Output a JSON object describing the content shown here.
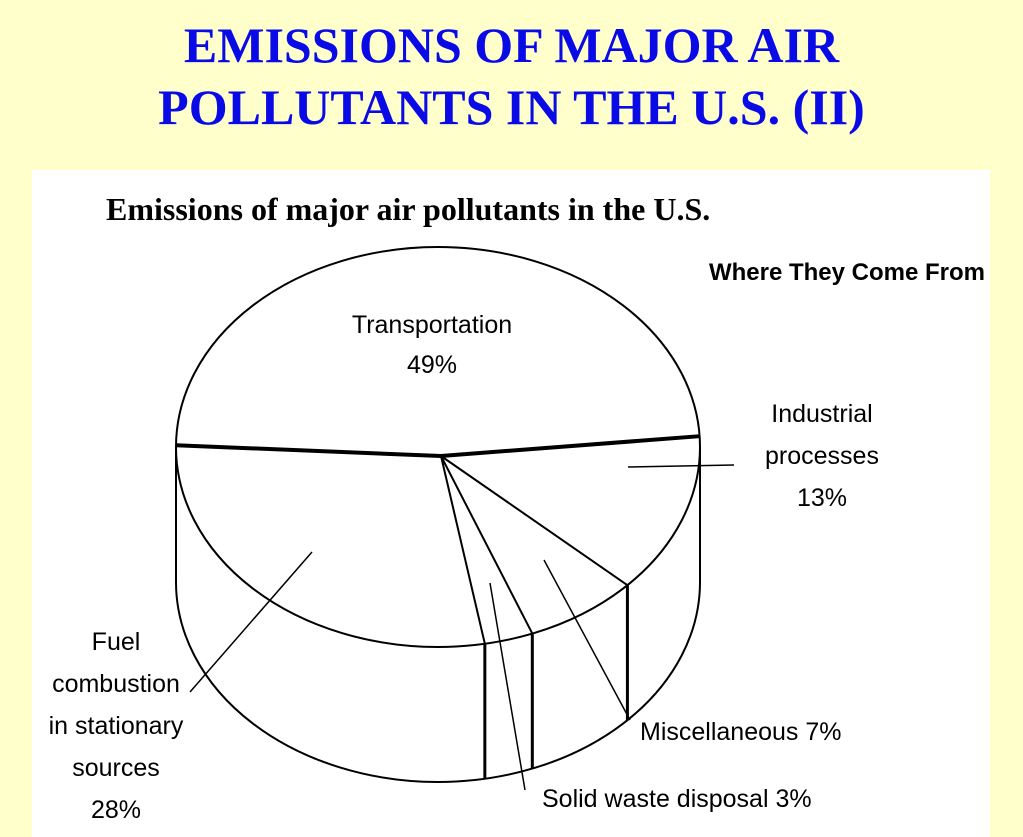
{
  "slide": {
    "title_line1": "EMISSIONS OF MAJOR AIR",
    "title_line2": "POLLUTANTS IN THE U.S. (II)",
    "background_color": "#ffffcc",
    "title_color": "#0a0ae6"
  },
  "chart_data": {
    "type": "pie",
    "title": "Emissions of major air pollutants in the U.S.",
    "subtitle": "Where They Come From",
    "slices": [
      {
        "label_lines": [
          "Transportation",
          "49%"
        ],
        "name": "Transportation",
        "value": 49
      },
      {
        "label_lines": [
          "Industrial",
          "processes",
          "13%"
        ],
        "name": "Industrial processes",
        "value": 13
      },
      {
        "label_lines": [
          "Miscellaneous   7%"
        ],
        "name": "Miscellaneous",
        "value": 7
      },
      {
        "label_lines": [
          "Solid waste disposal  3%"
        ],
        "name": "Solid waste disposal",
        "value": 3
      },
      {
        "label_lines": [
          "Fuel",
          "combustion",
          "in stationary",
          "sources",
          "28%"
        ],
        "name": "Fuel combustion in stationary sources",
        "value": 28
      }
    ],
    "style": "3d-drum-outline"
  }
}
